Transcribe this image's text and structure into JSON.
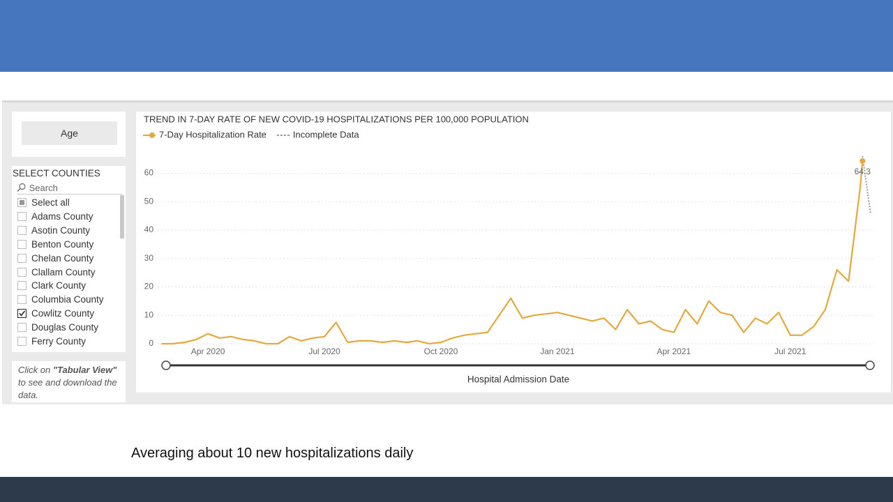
{
  "filters": {
    "button": "Age"
  },
  "slicer": {
    "title": "SELECT COUNTIES",
    "search": "Search",
    "items": [
      {
        "label": "Select all",
        "checked": "partial"
      },
      {
        "label": "Adams County",
        "checked": false
      },
      {
        "label": "Asotin County",
        "checked": false
      },
      {
        "label": "Benton County",
        "checked": false
      },
      {
        "label": "Chelan County",
        "checked": false
      },
      {
        "label": "Clallam County",
        "checked": false
      },
      {
        "label": "Clark County",
        "checked": false
      },
      {
        "label": "Columbia County",
        "checked": false
      },
      {
        "label": "Cowlitz County",
        "checked": true
      },
      {
        "label": "Douglas County",
        "checked": false
      },
      {
        "label": "Ferry County",
        "checked": false
      }
    ]
  },
  "note": {
    "pre": "Click on ",
    "bold": "\"Tabular View\"",
    "post": " to see and download the data."
  },
  "caption": "Averaging about 10 new hospitalizations daily",
  "chart_data": {
    "type": "line",
    "title": "TREND IN 7-DAY RATE OF NEW COVID-19 HOSPITALIZATIONS PER 100,000 POPULATION",
    "x_label": "Hospital Admission Date",
    "xlim": [
      2020.148,
      2021.68
    ],
    "xticks": [
      {
        "value": 2020.25,
        "label": "Apr 2020"
      },
      {
        "value": 2020.5,
        "label": "Jul 2020"
      },
      {
        "value": 2020.75,
        "label": "Oct 2020"
      },
      {
        "value": 2021.0,
        "label": "Jan 2021"
      },
      {
        "value": 2021.25,
        "label": "Apr 2021"
      },
      {
        "value": 2021.5,
        "label": "Jul 2021"
      }
    ],
    "ylim": [
      0,
      65
    ],
    "yticks": [
      0,
      10,
      20,
      30,
      40,
      50,
      60
    ],
    "grid": true,
    "series": [
      {
        "name": "7-Day Hospitalization Rate",
        "color": "#e3a93c",
        "x": [
          2020.15,
          2020.175,
          2020.2,
          2020.225,
          2020.25,
          2020.275,
          2020.3,
          2020.325,
          2020.35,
          2020.375,
          2020.4,
          2020.425,
          2020.45,
          2020.475,
          2020.5,
          2020.525,
          2020.55,
          2020.575,
          2020.6,
          2020.625,
          2020.65,
          2020.675,
          2020.7,
          2020.725,
          2020.75,
          2020.775,
          2020.8,
          2020.825,
          2020.85,
          2020.875,
          2020.9,
          2020.925,
          2020.95,
          2020.975,
          2021.0,
          2021.025,
          2021.05,
          2021.075,
          2021.1,
          2021.125,
          2021.15,
          2021.175,
          2021.2,
          2021.225,
          2021.25,
          2021.275,
          2021.3,
          2021.325,
          2021.35,
          2021.375,
          2021.4,
          2021.425,
          2021.45,
          2021.475,
          2021.5,
          2021.525,
          2021.55,
          2021.575,
          2021.6,
          2021.625,
          2021.65,
          2021.655
        ],
        "values": [
          0,
          0,
          0.5,
          1.5,
          3.5,
          2,
          2.5,
          1.5,
          1,
          0,
          0,
          2.5,
          1,
          2,
          2.5,
          7.5,
          0.5,
          1,
          1,
          0.5,
          1,
          0.5,
          1,
          0,
          0.5,
          2,
          3,
          3.5,
          4,
          10,
          16,
          9,
          10,
          10.5,
          11,
          10,
          9,
          8,
          9,
          5,
          12,
          7,
          8,
          5,
          4,
          12,
          7,
          15,
          11,
          10,
          4,
          9,
          7,
          11,
          3,
          3,
          6,
          12,
          26,
          22,
          55,
          64.3
        ]
      },
      {
        "name": "Incomplete Data",
        "color": "#999999",
        "dashed": true,
        "x": [
          2021.655,
          2021.672
        ],
        "values": [
          66,
          46
        ]
      }
    ]
  }
}
